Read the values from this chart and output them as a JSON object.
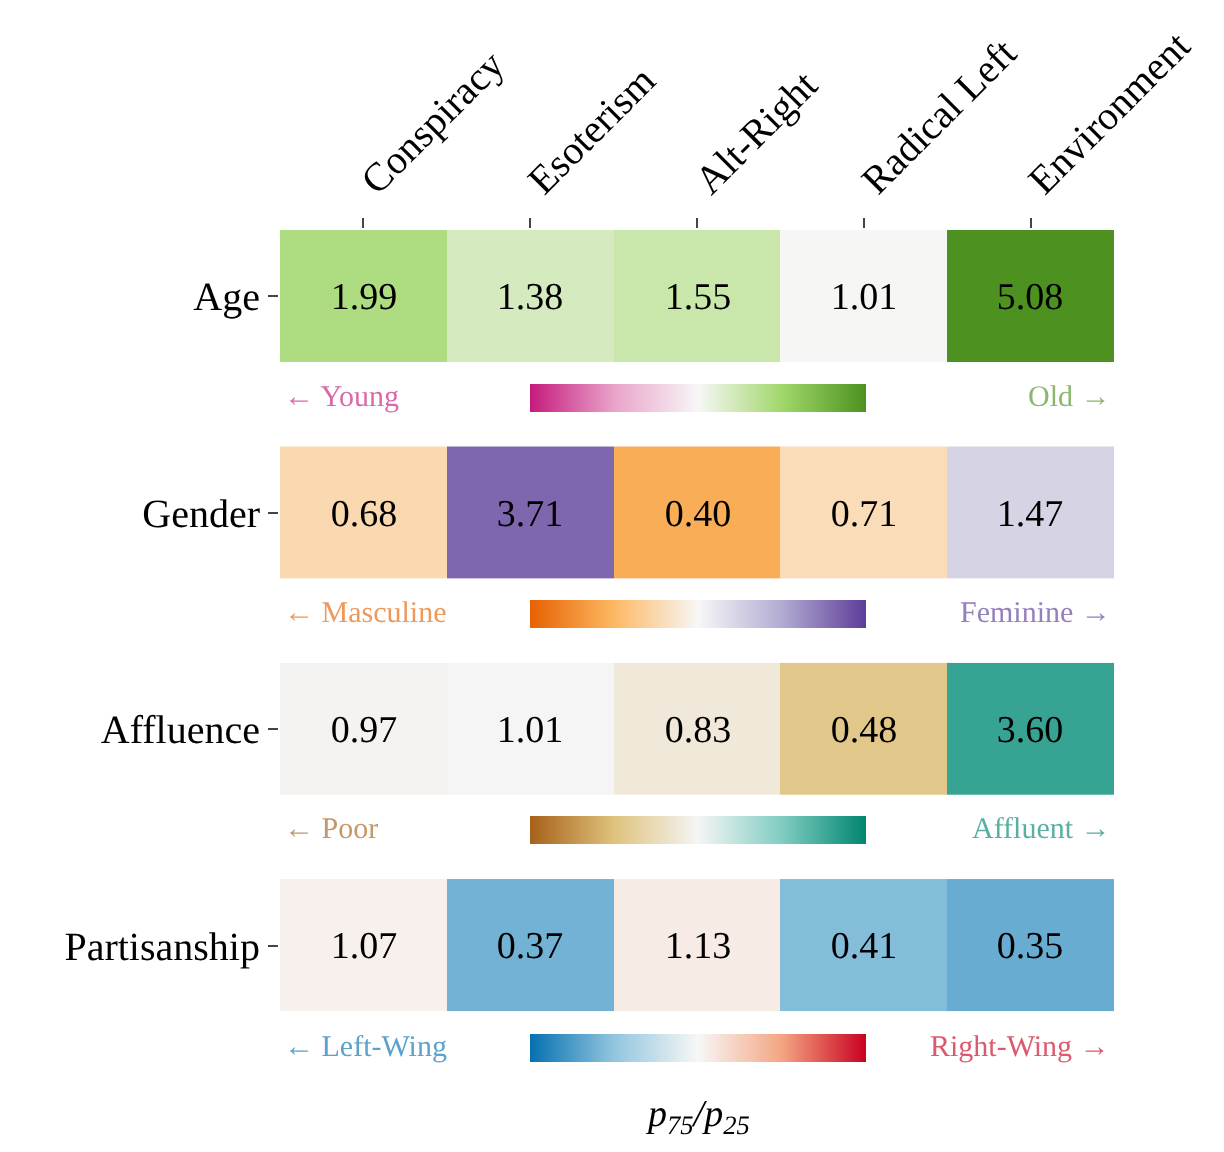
{
  "chart_data": [
    {
      "type": "heatmap",
      "categories": [
        "Conspiracy",
        "Esoterism",
        "Alt-Right",
        "Radical Left",
        "Environment"
      ],
      "y_categories": [
        "Age"
      ],
      "cells": [
        [
          1.99,
          1.38,
          1.55,
          1.01,
          5.08
        ]
      ],
      "cell_labels": [
        [
          "1.99",
          "1.38",
          "1.55",
          "1.01",
          "5.08"
        ]
      ],
      "colors": [
        "#c51b7d",
        "#e9a3c9",
        "#f7f7f7",
        "#a1d76a",
        "#4d9221"
      ],
      "annotations": [
        "← Young",
        "Old →"
      ]
    },
    {
      "type": "heatmap",
      "categories": [
        "Conspiracy",
        "Esoterism",
        "Alt-Right",
        "Radical Left",
        "Environment"
      ],
      "y_categories": [
        "Gender"
      ],
      "cells": [
        [
          0.68,
          3.71,
          0.4,
          0.71,
          1.47
        ]
      ],
      "cell_labels": [
        [
          "0.68",
          "3.71",
          "0.40",
          "0.71",
          "1.47"
        ]
      ],
      "colors": [
        "#e66101",
        "#fdb863",
        "#f7f7f7",
        "#b2abd2",
        "#5e3c99"
      ],
      "annotations": [
        "← Masculine",
        "Feminine →"
      ],
      "tick_labels": "y"
    },
    {
      "type": "heatmap",
      "categories": [
        "Conspiracy",
        "Esoterism",
        "Alt-Right",
        "Radical Left",
        "Environment"
      ],
      "y_categories": [
        "Affluence"
      ],
      "cells": [
        [
          0.97,
          1.01,
          0.83,
          0.48,
          3.6
        ]
      ],
      "cell_labels": [
        [
          "0.97",
          "1.01",
          "0.83",
          "0.48",
          "3.60"
        ]
      ],
      "colors": [
        "#a6611a",
        "#dfc27d",
        "#f5f5f5",
        "#80cdc1",
        "#018571"
      ],
      "annotations": [
        "← Poor",
        "Affluent →"
      ],
      "tick_labels": "y"
    },
    {
      "type": "heatmap",
      "categories": [
        "Conspiracy",
        "Esoterism",
        "Alt-Right",
        "Radical Left",
        "Environment"
      ],
      "y_categories": [
        "Partisanship"
      ],
      "cells": [
        [
          1.07,
          0.37,
          1.13,
          0.41,
          0.35
        ]
      ],
      "cell_labels": [
        [
          "1.07",
          "0.37",
          "1.13",
          "0.41",
          "0.35"
        ]
      ],
      "colors": [
        "#0571b0",
        "#92c5de",
        "#f7f7f7",
        "#f4a582",
        "#ca0020"
      ],
      "annotations": [
        "← Left-Wing",
        "Right-Wing →"
      ],
      "tick_labels": "y",
      "clabel": "p$_{75}$/p$_{25}$"
    }
  ]
}
